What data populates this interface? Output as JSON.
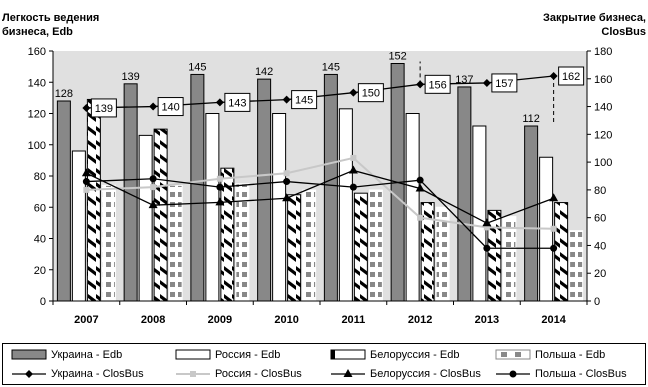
{
  "chart_data": {
    "type": "bar+line",
    "categories": [
      "2007",
      "2008",
      "2009",
      "2010",
      "2011",
      "2012",
      "2013",
      "2014"
    ],
    "y_left": {
      "label_lines": [
        "Легкость ведения",
        "бизнеса, Edb"
      ],
      "min": 0,
      "max": 160,
      "step": 20
    },
    "y_right": {
      "label_lines": [
        "Закрытие бизнеса,",
        "ClosBus"
      ],
      "min": 0,
      "max": 180,
      "step": 20
    },
    "grid": false,
    "legend_position": "bottom",
    "bar_series": [
      {
        "name": "Украина - Edb",
        "style": "ukraine-bar",
        "values": [
          128,
          139,
          145,
          142,
          145,
          152,
          137,
          112
        ]
      },
      {
        "name": "Россия - Edb",
        "style": "russia-bar",
        "values": [
          96,
          106,
          120,
          120,
          123,
          120,
          112,
          92
        ]
      },
      {
        "name": "Белоруссия - Edb",
        "style": "belarus-bar",
        "values": [
          129,
          110,
          85,
          68,
          69,
          63,
          58,
          63
        ]
      },
      {
        "name": "Польша - Edb",
        "style": "poland-bar",
        "values": [
          74,
          74,
          75,
          71,
          71,
          60,
          54,
          45
        ]
      }
    ],
    "line_series": [
      {
        "name": "Украина - ClosBus",
        "style": "ukraine-line",
        "values": [
          139,
          140,
          143,
          145,
          150,
          156,
          157,
          162
        ]
      },
      {
        "name": "Россия - ClosBus",
        "style": "russia-line",
        "values": [
          80,
          82,
          88,
          92,
          103,
          60,
          53,
          52
        ]
      },
      {
        "name": "Белоруссия - ClosBus",
        "style": "belarus-line",
        "values": [
          92,
          69,
          71,
          74,
          94,
          81,
          56,
          74
        ]
      },
      {
        "name": "Польша - ClosBus",
        "style": "poland-line",
        "values": [
          86,
          88,
          82,
          86,
          82,
          87,
          38,
          38
        ]
      }
    ],
    "bar_labels": [
      {
        "series": "Украина - Edb",
        "values": [
          128,
          139,
          145,
          142,
          145,
          152,
          137,
          112
        ]
      }
    ],
    "line_callouts": [
      {
        "series": "Украина - ClosBus",
        "values": [
          139,
          140,
          143,
          145,
          150,
          156,
          157,
          162
        ]
      }
    ],
    "colors": {
      "plot_background": "#e0e0e0",
      "ukraine": "#888888",
      "russia": "#ffffff",
      "belarus": "#000000",
      "poland": "#888888",
      "russia_line": "#c8c8c8",
      "axis": "#000000"
    }
  }
}
